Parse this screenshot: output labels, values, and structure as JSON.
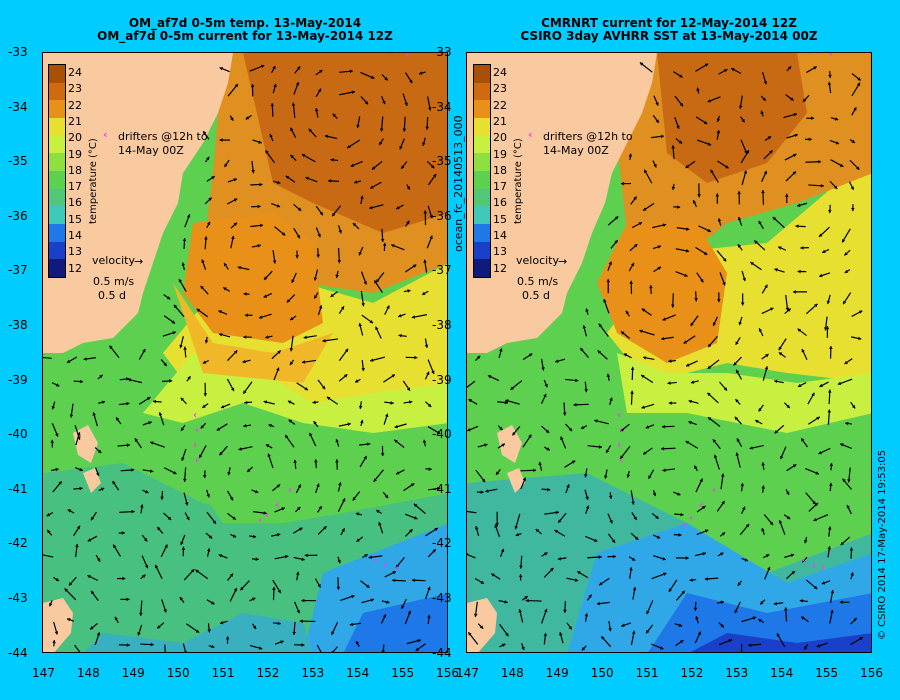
{
  "colors": {
    "background": "#00ccff",
    "land": "#f9c9a0",
    "drifter": "#ff33ff",
    "palette": [
      "#101a7a",
      "#1a3fc8",
      "#1e78e8",
      "#30a8e8",
      "#40c8b8",
      "#50c878",
      "#5ed050",
      "#8ee040",
      "#c8f040",
      "#e8e030",
      "#f0b828",
      "#e89018",
      "#d06a10",
      "#a85008"
    ]
  },
  "left_panel": {
    "title_line1": "OM_af7d 0-5m temp. 13-May-2014",
    "title_line2": "OM_af7d 0-5m current for 13-May-2014 12Z",
    "drifters_label_1": "drifters @12h to",
    "drifters_label_2": "14-May 00Z",
    "velocity_label": "velocity",
    "velocity_speed": "0.5 m/s",
    "velocity_time": "0.5 d",
    "colorbar_title": "temperature (°C)"
  },
  "right_panel": {
    "title_line1": "CMRNRT current for 12-May-2014 12Z",
    "title_line2": "CSIRO 3day AVHRR SST at 13-May-2014 00Z",
    "drifters_label_1": "drifters @12h to",
    "drifters_label_2": "14-May 00Z",
    "velocity_label": "velocity",
    "velocity_speed": "0.5 m/s",
    "velocity_time": "0.5 d",
    "colorbar_title": "temperature (°C)"
  },
  "side_label": "ocean_fc_20140513_000",
  "footer_label": "© CSIRO 2014   17-May-2014 19:53:05",
  "colorbar_ticks": [
    "24",
    "23",
    "22",
    "21",
    "20",
    "19",
    "18",
    "17",
    "16",
    "15",
    "14",
    "13",
    "12"
  ],
  "y_axis_ticks": [
    "-33",
    "-34",
    "-35",
    "-36",
    "-37",
    "-38",
    "-39",
    "-40",
    "-41",
    "-42",
    "-43",
    "-44"
  ],
  "x_axis_ticks": [
    "147",
    "148",
    "149",
    "150",
    "151",
    "152",
    "153",
    "154",
    "155",
    "156"
  ]
}
